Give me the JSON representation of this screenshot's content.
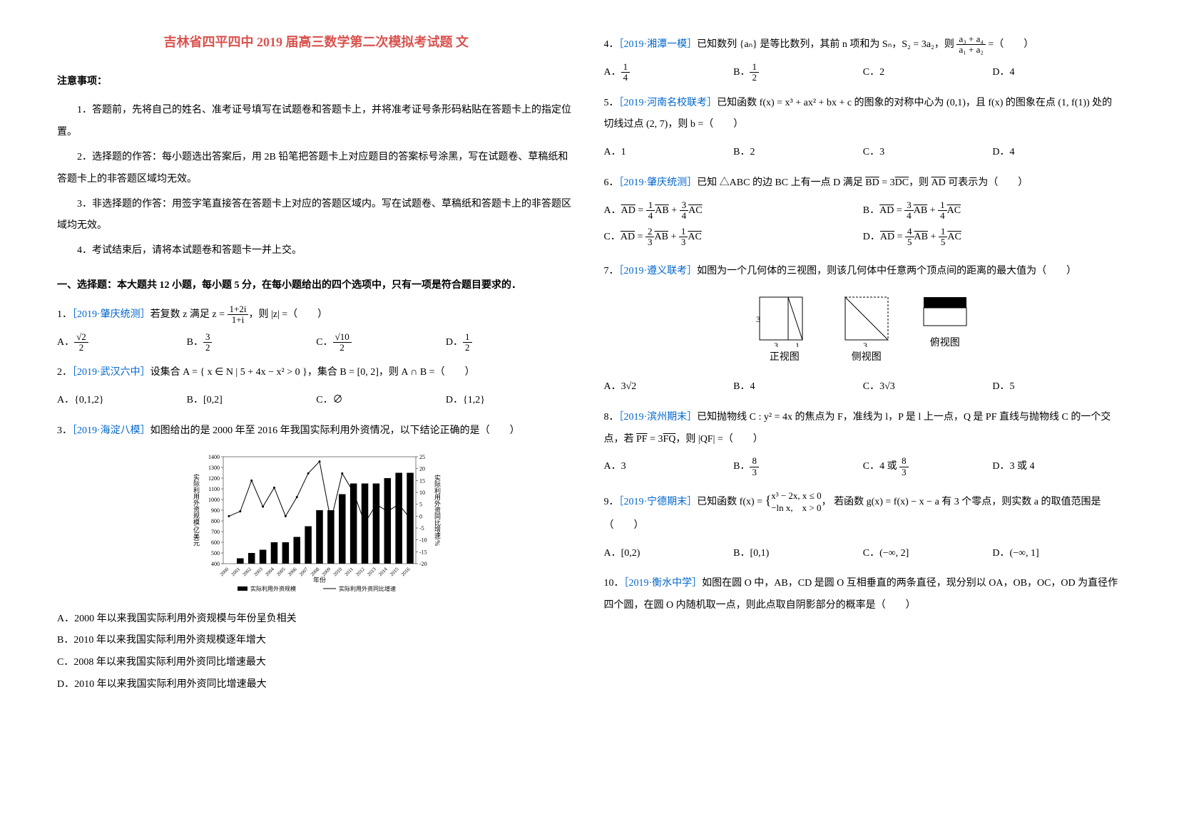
{
  "title": "吉林省四平四中 2019 届高三数学第二次模拟考试题 文",
  "notice_head": "注意事项：",
  "notices": [
    "1．答题前，先将自己的姓名、准考证号填写在试题卷和答题卡上，并将准考证号条形码粘贴在答题卡上的指定位置。",
    "2．选择题的作答：每小题选出答案后，用 2B 铅笔把答题卡上对应题目的答案标号涂黑，写在试题卷、草稿纸和答题卡上的非答题区域均无效。",
    "3．非选择题的作答：用签字笔直接答在答题卡上对应的答题区域内。写在试题卷、草稿纸和答题卡上的非答题区域均无效。",
    "4．考试结束后，请将本试题卷和答题卡一并上交。"
  ],
  "part1_head": "一、选择题：本大题共 12 小题，每小题 5 分，在每小题给出的四个选项中，只有一项是符合题目要求的．",
  "q1": {
    "tag": "［2019·肇庆统测］",
    "text_a": "若复数 z 满足 z = ",
    "text_b": "，则 |z| =（　　）",
    "opts": [
      "A．",
      "B．",
      "C．",
      "D．"
    ]
  },
  "q2": {
    "tag": "［2019·武汉六中］",
    "text_a": "设集合 A = { x ∈ N | 5 + 4x − x² > 0 }，集合 B = [0, 2]，则 A ∩ B =（　　）",
    "opts": [
      "A．{0,1,2}",
      "B．[0,2]",
      "C．∅",
      "D．{1,2}"
    ]
  },
  "q3": {
    "tag": "［2019·海淀八模］",
    "text": "如图给出的是 2000 年至 2016 年我国实际利用外资情况，以下结论正确的是（　　）",
    "chart": {
      "type": "combo",
      "years": [
        "2000",
        "2001",
        "2002",
        "2003",
        "2004",
        "2005",
        "2006",
        "2007",
        "2008",
        "2009",
        "2010",
        "2011",
        "2012",
        "2013",
        "2014",
        "2015",
        "2016"
      ],
      "bars": [
        400,
        450,
        500,
        530,
        600,
        600,
        650,
        750,
        900,
        900,
        1050,
        1150,
        1150,
        1150,
        1200,
        1250,
        1250
      ],
      "line": [
        0,
        2,
        15,
        4,
        12,
        0,
        8,
        18,
        23,
        -2,
        18,
        10,
        -3,
        5,
        2,
        5,
        -1
      ],
      "y_left_ticks": [
        400,
        500,
        600,
        700,
        800,
        900,
        1000,
        1100,
        1200,
        1300,
        1400
      ],
      "y_right_ticks": [
        -20,
        -15,
        -10,
        -5,
        0,
        5,
        10,
        15,
        20,
        25
      ],
      "y_left_label": "实际利用外资规模/亿美元",
      "y_right_label": "实际利用外资同比增速/%",
      "x_label": "年份",
      "legend": [
        "实际利用外资规模",
        "实际利用外资同比增速"
      ],
      "bar_color": "#000000",
      "line_color": "#000000",
      "bg": "#ffffff"
    },
    "opts": [
      "A．2000 年以来我国实际利用外资规模与年份呈负相关",
      "B．2010 年以来我国实际利用外资规模逐年增大",
      "C．2008 年以来我国实际利用外资同比增速最大",
      "D．2010 年以来我国实际利用外资同比增速最大"
    ]
  },
  "q4": {
    "tag": "［2019·湘潭一模］",
    "text_a": "已知数列 {aₙ} 是等比数列，其前 n 项和为 Sₙ，S₂ = 3a₂，则",
    "text_b": " =（　　）",
    "opts": [
      "A．",
      "B．",
      "C．2",
      "D．4"
    ]
  },
  "q5": {
    "tag": "［2019·河南名校联考］",
    "text": "已知函数 f(x) = x³ + ax² + bx + c 的图象的对称中心为 (0,1)，且 f(x) 的图象在点 (1, f(1)) 处的切线过点 (2, 7)，则 b =（　　）",
    "opts": [
      "A．1",
      "B．2",
      "C．3",
      "D．4"
    ]
  },
  "q6": {
    "tag": "［2019·肇庆统测］",
    "text": "已知 △ABC 的边 BC 上有一点 D 满足 BD = 3DC，则 AD 可表示为（　　）"
  },
  "q7": {
    "tag": "［2019·遵义联考］",
    "text": "如图为一个几何体的三视图，则该几何体中任意两个顶点间的距离的最大值为（　　）",
    "views": {
      "front": "正视图",
      "side": "侧视图",
      "top": "俯视图",
      "dim3": "3",
      "dim1": "1"
    },
    "opts": [
      "A．3√2",
      "B．4",
      "C．3√3",
      "D．5"
    ]
  },
  "q8": {
    "tag": "［2019·滨州期末］",
    "text": "已知抛物线 C : y² = 4x 的焦点为 F，准线为 l，P 是 l 上一点，Q 是 PF 直线与抛物线 C 的一个交点，若 PF = 3FQ，则 |QF| =（　　）",
    "opts": [
      "A．3",
      "B．",
      "C．4 或 ",
      "D．3 或 4"
    ]
  },
  "q9": {
    "tag": "［2019·宁德期末］",
    "text_a": "已知函数 f(x) = ",
    "text_b": "若函数 g(x) = f(x) − x − a 有 3 个零点，则实数 a 的取值范围是（　　）",
    "opts": [
      "A．[0,2)",
      "B．[0,1)",
      "C．(−∞, 2]",
      "D．(−∞, 1]"
    ]
  },
  "q10": {
    "tag": "［2019·衡水中学］",
    "text": "如图在圆 O 中，AB，CD 是圆 O 互相垂直的两条直径，现分别以 OA，OB，OC，OD 为直径作四个圆，在圆 O 内随机取一点，则此点取自阴影部分的概率是（　　）"
  }
}
